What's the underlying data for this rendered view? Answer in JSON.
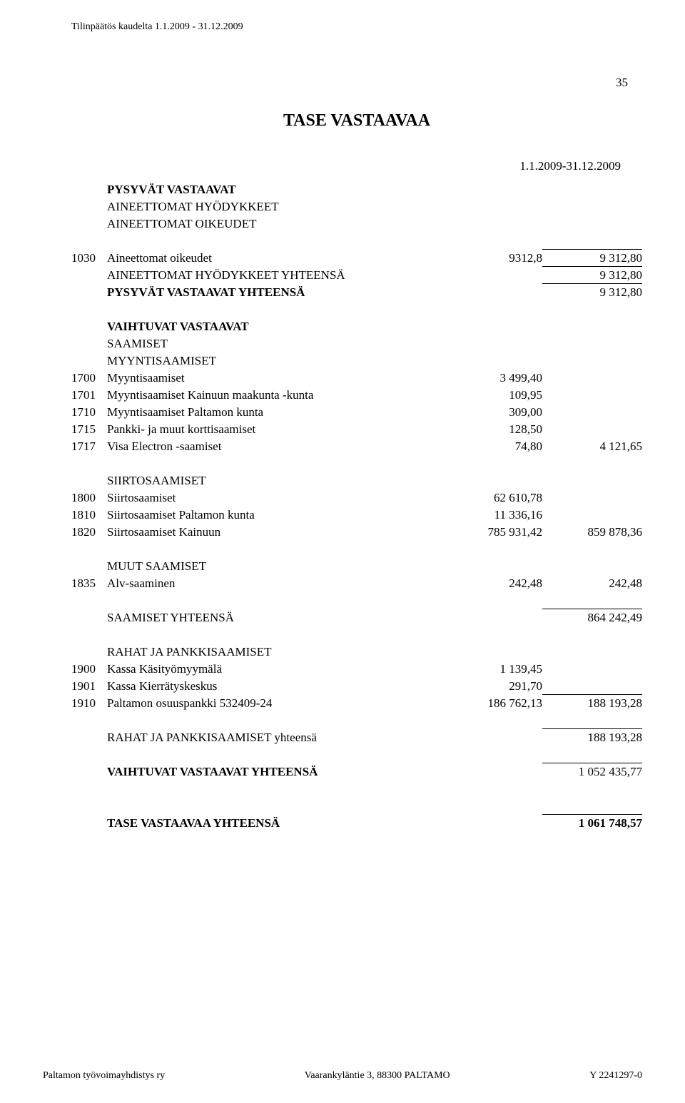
{
  "header": "Tilinpäätös kaudelta 1.1.2009 - 31.12.2009",
  "page_number": "35",
  "title": "TASE VASTAAVAA",
  "period": "1.1.2009-31.12.2009",
  "sections": {
    "pysyvat": {
      "heading": "PYSYVÄT VASTAAVAT",
      "sub1": "AINEETTOMAT HYÖDYKKEET",
      "sub2": "AINEETTOMAT OIKEUDET",
      "row1": {
        "code": "1030",
        "label": "Aineettomat oikeudet",
        "a1": "9312,8",
        "a2": "9 312,80"
      },
      "tot1": {
        "label": "AINEETTOMAT HYÖDYKKEET YHTEENSÄ",
        "a2": "9 312,80"
      },
      "tot2": {
        "label": "PYSYVÄT VASTAAVAT YHTEENSÄ",
        "a2": "9 312,80"
      }
    },
    "vaihtuvat": {
      "heading": "VAIHTUVAT VASTAAVAT",
      "saamiset": "SAAMISET",
      "myyntis": "MYYNTISAAMISET",
      "r1": {
        "code": "1700",
        "label": "Myyntisaamiset",
        "a1": "3 499,40"
      },
      "r2": {
        "code": "1701",
        "label": "Myyntisaamiset Kainuun maakunta -kunta",
        "a1": "109,95"
      },
      "r3": {
        "code": "1710",
        "label": "Myyntisaamiset Paltamon kunta",
        "a1": "309,00"
      },
      "r4": {
        "code": "1715",
        "label": "Pankki- ja muut korttisaamiset",
        "a1": "128,50"
      },
      "r5": {
        "code": "1717",
        "label": "Visa Electron -saamiset",
        "a1": "74,80",
        "a2": "4 121,65"
      }
    },
    "siirto": {
      "heading": "SIIRTOSAAMISET",
      "r1": {
        "code": "1800",
        "label": "Siirtosaamiset",
        "a1": "62 610,78"
      },
      "r2": {
        "code": "1810",
        "label": "Siirtosaamiset Paltamon kunta",
        "a1": "11 336,16"
      },
      "r3": {
        "code": "1820",
        "label": "Siirtosaamiset Kainuun",
        "a1": "785 931,42",
        "a2": "859 878,36"
      }
    },
    "muut": {
      "heading": "MUUT SAAMISET",
      "r1": {
        "code": "1835",
        "label": "Alv-saaminen",
        "a1": "242,48",
        "a2": "242,48"
      }
    },
    "saamiset_total": {
      "label": "SAAMISET YHTEENSÄ",
      "a2": "864 242,49"
    },
    "rahat": {
      "heading": "RAHAT JA PANKKISAAMISET",
      "r1": {
        "code": "1900",
        "label": "Kassa Käsityömyymälä",
        "a1": "1 139,45"
      },
      "r2": {
        "code": "1901",
        "label": "Kassa Kierrätyskeskus",
        "a1": "291,70"
      },
      "r3": {
        "code": "1910",
        "label": "Paltamon osuuspankki 532409-24",
        "a1": "186 762,13",
        "a2": "188 193,28"
      },
      "total": {
        "label": "RAHAT JA PANKKISAAMISET yhteensä",
        "a2": "188 193,28"
      }
    },
    "vaihtuvat_total": {
      "label": "VAIHTUVAT VASTAAVAT YHTEENSÄ",
      "a2": "1 052 435,77"
    },
    "grand_total": {
      "label": "TASE VASTAAVAA YHTEENSÄ",
      "a2": "1 061 748,57"
    }
  },
  "footer": {
    "left": "Paltamon työvoimayhdistys ry",
    "center": "Vaarankyläntie 3, 88300 PALTAMO",
    "right": "Y 2241297-0"
  }
}
